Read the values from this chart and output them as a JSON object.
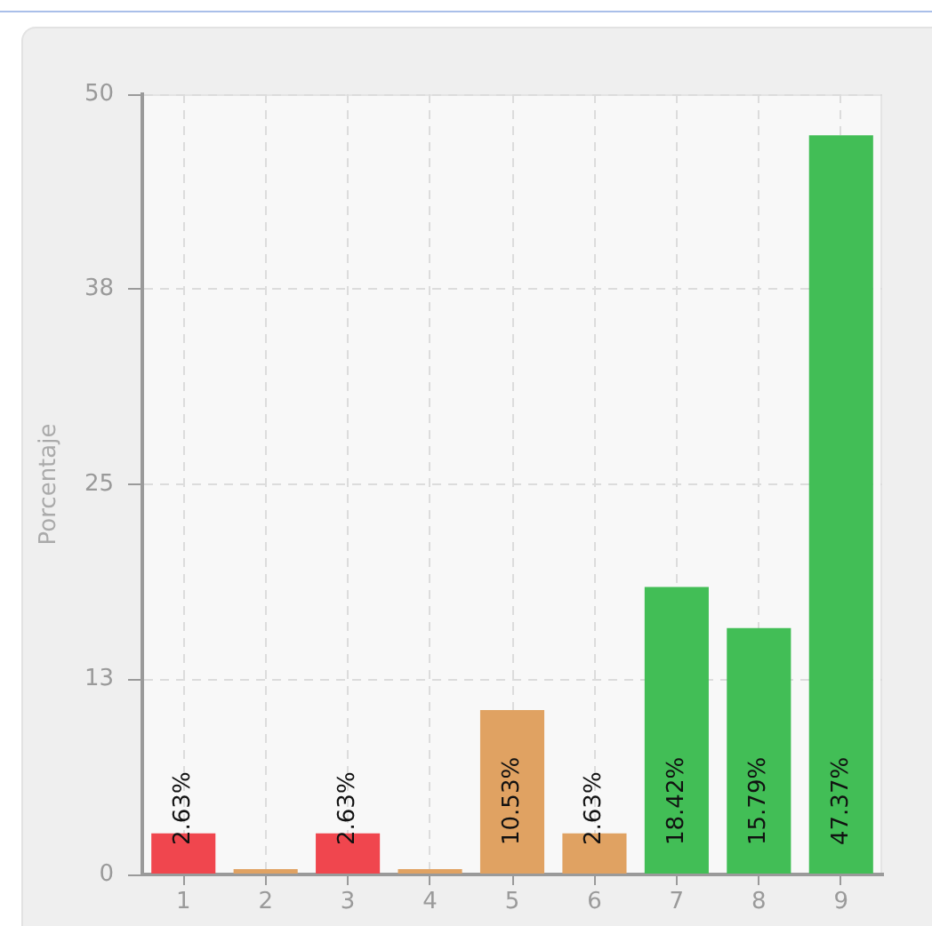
{
  "chart_data": {
    "type": "bar",
    "ylabel": "Porcentaje",
    "categories": [
      "1",
      "2",
      "3",
      "4",
      "5",
      "6",
      "7",
      "8",
      "9"
    ],
    "values": [
      2.63,
      0,
      2.63,
      0,
      10.53,
      2.63,
      18.42,
      15.79,
      47.37
    ],
    "colors": [
      "#f0464e",
      "#e0a262",
      "#f0464e",
      "#e0a262",
      "#e0a262",
      "#e0a262",
      "#42be56",
      "#42be56",
      "#42be56"
    ],
    "value_labels": [
      "2.63%",
      null,
      "2.63%",
      null,
      "10.53%",
      "2.63%",
      "18.42%",
      "15.79%",
      "47.37%"
    ],
    "ylim": [
      0,
      50
    ],
    "yticks": [
      0,
      {
        "value": 12.5,
        "label": "13"
      },
      25,
      {
        "value": 37.5,
        "label": "38"
      },
      50
    ],
    "grid": true
  }
}
